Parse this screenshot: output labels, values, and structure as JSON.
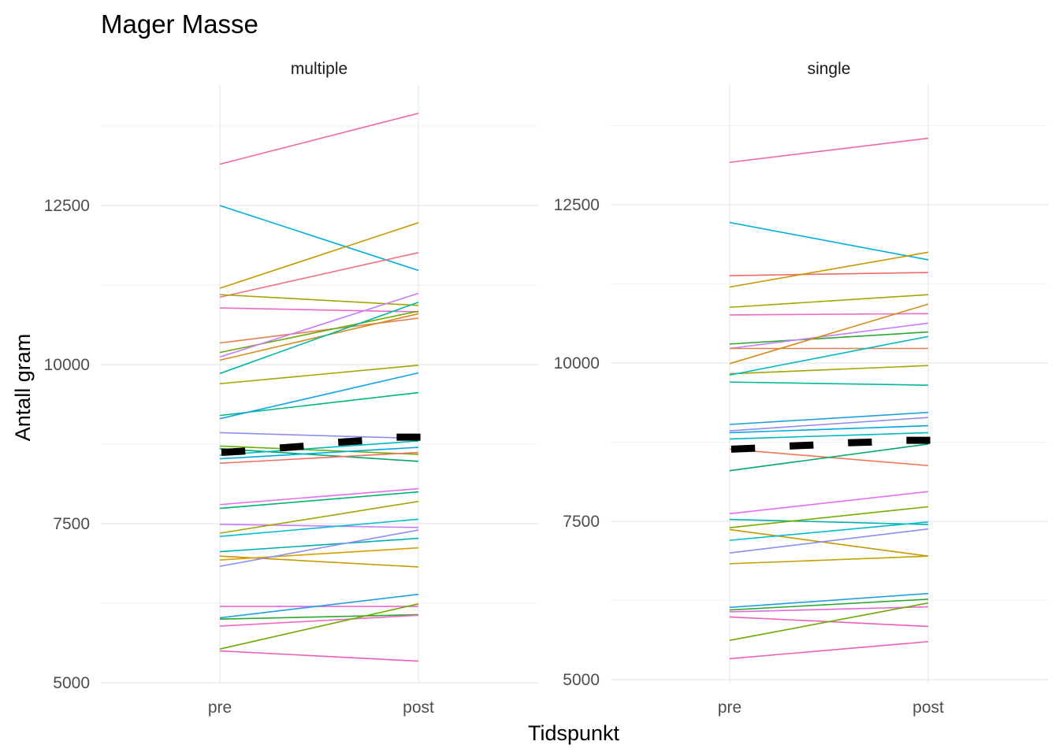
{
  "chart_data": {
    "type": "line",
    "title": "Mager Masse",
    "xlabel": "Tidspunkt",
    "ylabel": "Antall gram",
    "categories": [
      "pre",
      "post"
    ],
    "ylim": [
      4950,
      14400
    ],
    "yticks": [
      5000,
      7500,
      10000,
      12500
    ],
    "grid": true,
    "legend": "none",
    "panels": [
      {
        "name": "multiple",
        "series": [
          {
            "values": [
              13150,
              13950
            ],
            "color": "#f066a8"
          },
          {
            "values": [
              12500,
              11480
            ],
            "color": "#00aedb"
          },
          {
            "values": [
              11200,
              12230
            ],
            "color": "#c49a00"
          },
          {
            "values": [
              11060,
              11760
            ],
            "color": "#ef6f82"
          },
          {
            "values": [
              11100,
              10930
            ],
            "color": "#a3a500"
          },
          {
            "values": [
              10890,
              10830
            ],
            "color": "#f268c4"
          },
          {
            "values": [
              10340,
              10730
            ],
            "color": "#e87d4e"
          },
          {
            "values": [
              10190,
              10840
            ],
            "color": "#6aaa00"
          },
          {
            "values": [
              10120,
              11120
            ],
            "color": "#c77cff"
          },
          {
            "values": [
              10070,
              10800
            ],
            "color": "#d48a1a"
          },
          {
            "values": [
              9860,
              10980
            ],
            "color": "#00b8a0"
          },
          {
            "values": [
              9700,
              9990
            ],
            "color": "#a3a500"
          },
          {
            "values": [
              9200,
              9560
            ],
            "color": "#00b57f"
          },
          {
            "values": [
              9150,
              9870
            ],
            "color": "#11a4e8"
          },
          {
            "values": [
              8930,
              8840
            ],
            "color": "#8f8cf0"
          },
          {
            "values": [
              8720,
              8590
            ],
            "color": "#6bb100"
          },
          {
            "values": [
              8680,
              8480
            ],
            "color": "#00a86b"
          },
          {
            "values": [
              8580,
              8800
            ],
            "color": "#00b8c0"
          },
          {
            "values": [
              8520,
              8700
            ],
            "color": "#00a9e0"
          },
          {
            "values": [
              8450,
              8620
            ],
            "color": "#f06b5c"
          },
          {
            "values": [
              7800,
              8050
            ],
            "color": "#e56df2"
          },
          {
            "values": [
              7740,
              8000
            ],
            "color": "#00b36a"
          },
          {
            "values": [
              7490,
              7440
            ],
            "color": "#c77cff"
          },
          {
            "values": [
              7350,
              7850
            ],
            "color": "#a3a500"
          },
          {
            "values": [
              7300,
              7570
            ],
            "color": "#00bcd0"
          },
          {
            "values": [
              7060,
              7270
            ],
            "color": "#00b0b0"
          },
          {
            "values": [
              6990,
              6820
            ],
            "color": "#c49a00"
          },
          {
            "values": [
              6930,
              7120
            ],
            "color": "#d8a000"
          },
          {
            "values": [
              6830,
              7400
            ],
            "color": "#8b8df0"
          },
          {
            "values": [
              6200,
              6200
            ],
            "color": "#e568d8"
          },
          {
            "values": [
              6020,
              6390
            ],
            "color": "#1f9ee0"
          },
          {
            "values": [
              6000,
              6070
            ],
            "color": "#2aa830"
          },
          {
            "values": [
              5890,
              6060
            ],
            "color": "#f268c4"
          },
          {
            "values": [
              5530,
              6240
            ],
            "color": "#6aaa00"
          },
          {
            "values": [
              5500,
              5340
            ],
            "color": "#ef5fb8"
          }
        ],
        "mean": [
          8620,
          8690,
          8780,
          8860
        ]
      },
      {
        "name": "single",
        "series": [
          {
            "values": [
              13170,
              13550
            ],
            "color": "#f066a8"
          },
          {
            "values": [
              12220,
              11630
            ],
            "color": "#00aedb"
          },
          {
            "values": [
              11380,
              11430
            ],
            "color": "#f06b6b"
          },
          {
            "values": [
              11200,
              11750
            ],
            "color": "#c49a00"
          },
          {
            "values": [
              10880,
              11080
            ],
            "color": "#a3a500"
          },
          {
            "values": [
              10760,
              10780
            ],
            "color": "#f268c4"
          },
          {
            "values": [
              10300,
              10490
            ],
            "color": "#2aa830"
          },
          {
            "values": [
              10230,
              10630
            ],
            "color": "#c77cff"
          },
          {
            "values": [
              10230,
              10230
            ],
            "color": "#e87d4e"
          },
          {
            "values": [
              9990,
              10930
            ],
            "color": "#d48a1a"
          },
          {
            "values": [
              9830,
              9960
            ],
            "color": "#a3a500"
          },
          {
            "values": [
              9810,
              10420
            ],
            "color": "#00b8c0"
          },
          {
            "values": [
              9700,
              9650
            ],
            "color": "#00b896"
          },
          {
            "values": [
              9030,
              9220
            ],
            "color": "#1f9ee0"
          },
          {
            "values": [
              8930,
              9140
            ],
            "color": "#8f8cf0"
          },
          {
            "values": [
              8900,
              9010
            ],
            "color": "#00a9e0"
          },
          {
            "values": [
              8800,
              8900
            ],
            "color": "#00b8c0"
          },
          {
            "values": [
              8640,
              8380
            ],
            "color": "#f07850"
          },
          {
            "values": [
              8300,
              8720
            ],
            "color": "#00a86b"
          },
          {
            "values": [
              7620,
              7970
            ],
            "color": "#e56df2"
          },
          {
            "values": [
              7530,
              7450
            ],
            "color": "#00b0b0"
          },
          {
            "values": [
              7400,
              7730
            ],
            "color": "#7aaa00"
          },
          {
            "values": [
              7370,
              6950
            ],
            "color": "#c49a00"
          },
          {
            "values": [
              7200,
              7490
            ],
            "color": "#00bcd0"
          },
          {
            "values": [
              7000,
              7380
            ],
            "color": "#8b8df0"
          },
          {
            "values": [
              6830,
              6950
            ],
            "color": "#c4a000"
          },
          {
            "values": [
              6140,
              6360
            ],
            "color": "#1f9ee0"
          },
          {
            "values": [
              6100,
              6270
            ],
            "color": "#2aa830"
          },
          {
            "values": [
              6070,
              6150
            ],
            "color": "#e568d8"
          },
          {
            "values": [
              5990,
              5840
            ],
            "color": "#ef5fb8"
          },
          {
            "values": [
              5620,
              6210
            ],
            "color": "#6aaa00"
          },
          {
            "values": [
              5330,
              5600
            ],
            "color": "#ef5fb8"
          }
        ],
        "mean": [
          8640,
          8690,
          8740,
          8780
        ]
      }
    ]
  }
}
